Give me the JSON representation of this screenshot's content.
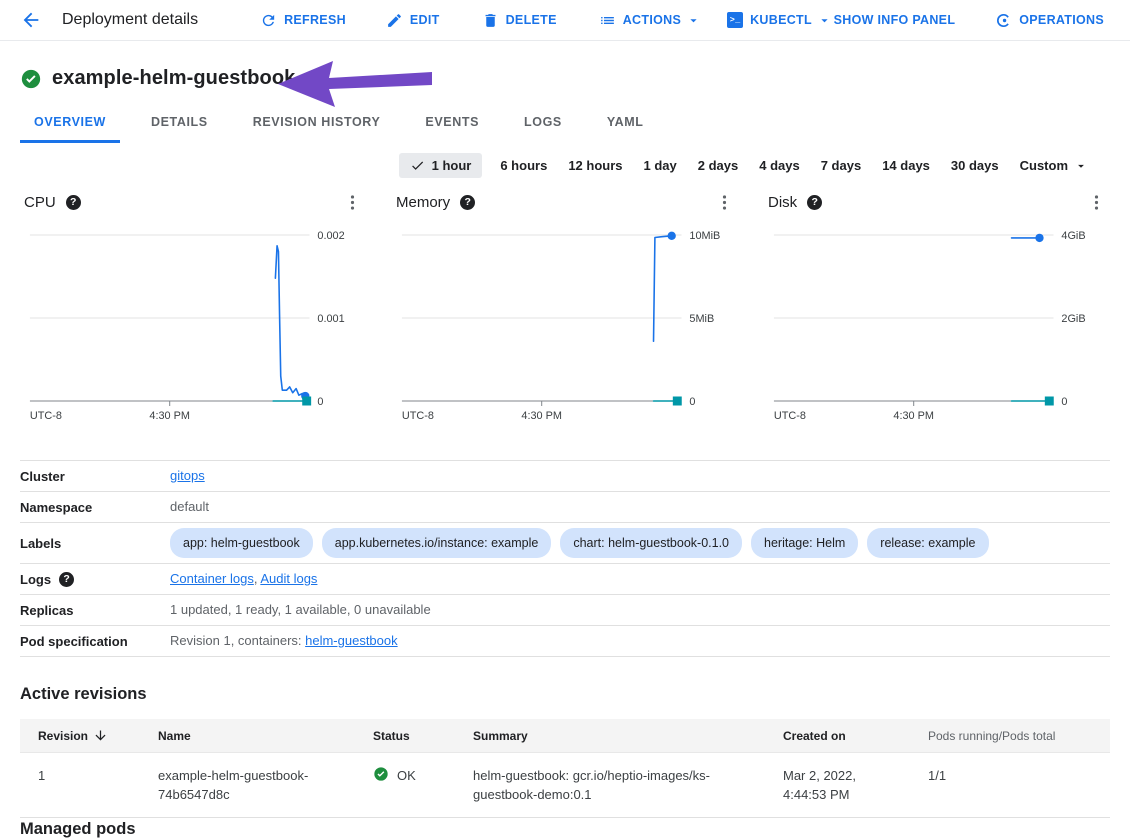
{
  "toolbar": {
    "title": "Deployment details",
    "refresh_label": "REFRESH",
    "edit_label": "EDIT",
    "delete_label": "DELETE",
    "actions_label": "ACTIONS",
    "kubectl_label": "KUBECTL",
    "show_info_panel_label": "SHOW INFO PANEL",
    "operations_label": "OPERATIONS"
  },
  "header": {
    "title": "example-helm-guestbook",
    "status": "ok"
  },
  "tabs": {
    "items": [
      "OVERVIEW",
      "DETAILS",
      "REVISION HISTORY",
      "EVENTS",
      "LOGS",
      "YAML"
    ],
    "selected_index": 0
  },
  "time_selector": {
    "options": [
      "1 hour",
      "6 hours",
      "12 hours",
      "1 day",
      "2 days",
      "4 days",
      "7 days",
      "14 days",
      "30 days"
    ],
    "selected": "1 hour",
    "custom_label": "Custom"
  },
  "chart_data": [
    {
      "id": "cpu",
      "type": "line",
      "title": "CPU",
      "ymax": 0.002,
      "ylim": [
        0,
        0.002
      ],
      "y_ticks": [
        {
          "value": 0.002,
          "label": "0.002"
        },
        {
          "value": 0.001,
          "label": "0.001"
        },
        {
          "value": 0,
          "label": "0"
        }
      ],
      "x_labels": {
        "left": "UTC-8",
        "center": "4:30 PM"
      },
      "series": [
        {
          "name": "cpu-usage",
          "color": "#1a73e8",
          "marker": "circle",
          "points": [
            [
              0.878,
              0.00148
            ],
            [
              0.884,
              0.00187
            ],
            [
              0.889,
              0.0018
            ],
            [
              0.893,
              0.00105
            ],
            [
              0.897,
              0.0003
            ],
            [
              0.903,
              0.00013
            ],
            [
              0.918,
              0.00013
            ],
            [
              0.929,
              0.00017
            ],
            [
              0.94,
              0.0001
            ],
            [
              0.952,
              0.00015
            ],
            [
              0.962,
              7e-05
            ],
            [
              0.975,
              9e-05
            ],
            [
              0.985,
              6e-05
            ]
          ]
        },
        {
          "name": "cpu-baseline",
          "color": "#0097a7",
          "marker": "square",
          "points": [
            [
              0.87,
              0
            ],
            [
              0.99,
              0
            ]
          ]
        }
      ]
    },
    {
      "id": "memory",
      "type": "line",
      "title": "Memory",
      "ymax": 10,
      "ylim": [
        0,
        10
      ],
      "y_ticks": [
        {
          "value": 10,
          "label": "10MiB"
        },
        {
          "value": 5,
          "label": "5MiB"
        },
        {
          "value": 0,
          "label": "0"
        }
      ],
      "x_labels": {
        "left": "UTC-8",
        "center": "4:30 PM"
      },
      "series": [
        {
          "name": "memory-usage",
          "color": "#1a73e8",
          "marker": "circle",
          "points": [
            [
              0.9,
              3.6
            ],
            [
              0.905,
              9.85
            ],
            [
              0.93,
              9.9
            ],
            [
              0.965,
              9.95
            ]
          ]
        },
        {
          "name": "memory-baseline",
          "color": "#0097a7",
          "marker": "square",
          "points": [
            [
              0.9,
              0
            ],
            [
              0.985,
              0
            ]
          ]
        }
      ]
    },
    {
      "id": "disk",
      "type": "line",
      "title": "Disk",
      "ymax": 4,
      "ylim": [
        0,
        4
      ],
      "y_ticks": [
        {
          "value": 4,
          "label": "4GiB"
        },
        {
          "value": 2,
          "label": "2GiB"
        },
        {
          "value": 0,
          "label": "0"
        }
      ],
      "x_labels": {
        "left": "UTC-8",
        "center": "4:30 PM"
      },
      "series": [
        {
          "name": "disk-usage",
          "color": "#1a73e8",
          "marker": "circle",
          "points": [
            [
              0.85,
              3.93
            ],
            [
              0.95,
              3.93
            ]
          ]
        },
        {
          "name": "disk-baseline",
          "color": "#0097a7",
          "marker": "square",
          "points": [
            [
              0.85,
              0
            ],
            [
              0.985,
              0
            ]
          ]
        }
      ]
    }
  ],
  "details": {
    "rows": [
      {
        "label": "Cluster",
        "help": false,
        "content": [
          {
            "t": "link",
            "v": "gitops"
          }
        ]
      },
      {
        "label": "Namespace",
        "help": false,
        "content": [
          {
            "t": "text",
            "v": "default"
          }
        ]
      },
      {
        "label": "Labels",
        "help": false,
        "content": [
          {
            "t": "chip",
            "v": "app: helm-guestbook"
          },
          {
            "t": "chip",
            "v": "app.kubernetes.io/instance: example"
          },
          {
            "t": "chip",
            "v": "chart: helm-guestbook-0.1.0"
          },
          {
            "t": "chip",
            "v": "heritage: Helm"
          },
          {
            "t": "chip",
            "v": "release: example"
          }
        ]
      },
      {
        "label": "Logs",
        "help": true,
        "content": [
          {
            "t": "link",
            "v": "Container logs"
          },
          {
            "t": "text",
            "v": ", "
          },
          {
            "t": "link",
            "v": "Audit logs"
          }
        ]
      },
      {
        "label": "Replicas",
        "help": false,
        "content": [
          {
            "t": "text",
            "v": "1 updated, 1 ready, 1 available, 0 unavailable"
          }
        ]
      },
      {
        "label": "Pod specification",
        "help": false,
        "content": [
          {
            "t": "text",
            "v": "Revision 1, containers: "
          },
          {
            "t": "link",
            "v": "helm-guestbook"
          }
        ]
      }
    ]
  },
  "active_revisions": {
    "heading": "Active revisions",
    "columns": [
      {
        "label": "Revision",
        "sorted": true,
        "muted": false
      },
      {
        "label": "Name",
        "sorted": false,
        "muted": false
      },
      {
        "label": "Status",
        "sorted": false,
        "muted": false
      },
      {
        "label": "Summary",
        "sorted": false,
        "muted": false
      },
      {
        "label": "Created on",
        "sorted": false,
        "muted": false
      },
      {
        "label": "Pods running/Pods total",
        "sorted": false,
        "muted": true
      }
    ],
    "rows": [
      {
        "revision": "1",
        "name": "example-helm-guestbook-74b6547d8c",
        "status": "OK",
        "status_ok": true,
        "summary": "helm-guestbook: gcr.io/heptio-images/ks-guestbook-demo:0.1",
        "created_on": "Mar 2, 2022, 4:44:53 PM",
        "pods": "1/1"
      }
    ]
  },
  "clipped_heading": "Managed pods",
  "colors": {
    "accent": "#1a73e8",
    "ok_green": "#1e8e3e",
    "chip_bg": "#d2e3fc",
    "annotation_purple": "#7248c6",
    "series_blue": "#1a73e8",
    "series_teal": "#0097a7",
    "selected_time_bg": "#e8eaed"
  }
}
